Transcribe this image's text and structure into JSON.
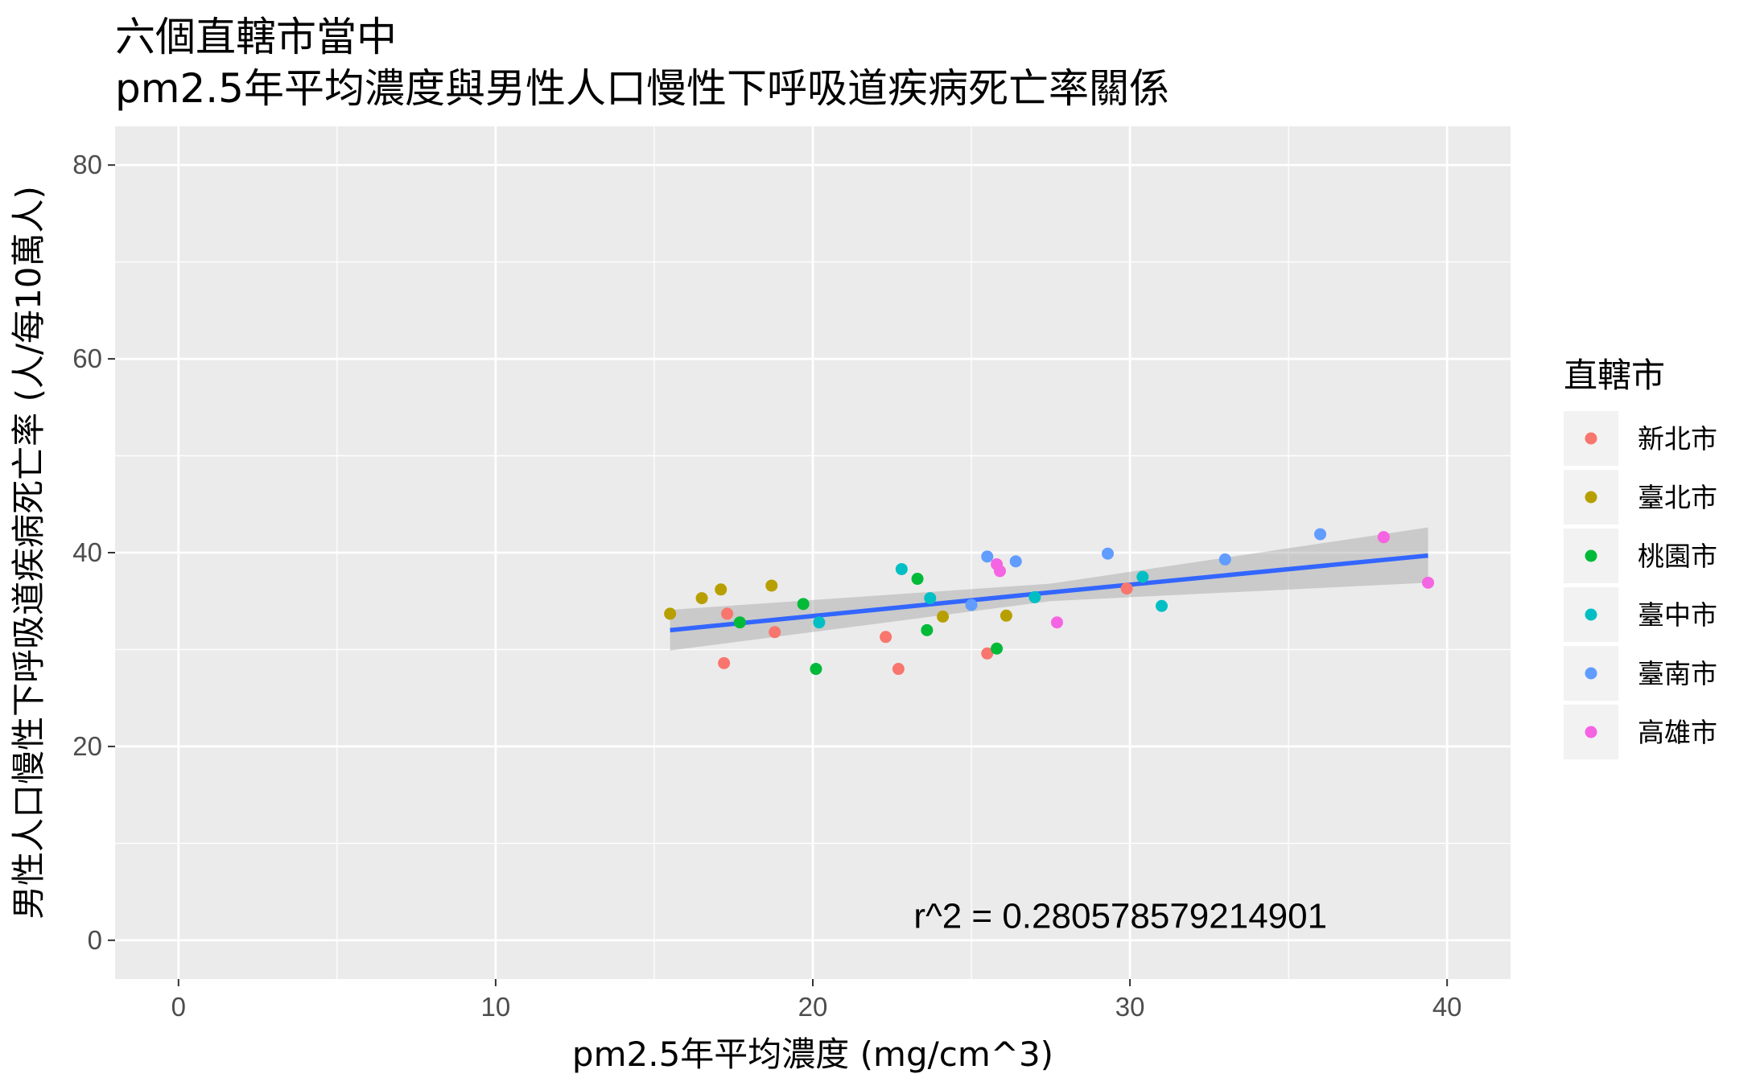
{
  "chart_data": {
    "type": "scatter",
    "title": "六個直轄市當中",
    "subtitle": "pm2.5年平均濃度與男性人口慢性下呼吸道疾病死亡率關係",
    "xlabel": "pm2.5年平均濃度 (mg/cm^3)",
    "ylabel": "男性人口慢性下呼吸道疾病死亡率 (人/每10萬人)",
    "xlim": [
      -2,
      42
    ],
    "ylim": [
      -4,
      84
    ],
    "x_ticks": [
      0,
      10,
      20,
      30,
      40
    ],
    "y_ticks": [
      0,
      20,
      40,
      60,
      80
    ],
    "grid": true,
    "panel_background": "#ebebeb",
    "legend": {
      "title": "直轄市",
      "position": "right"
    },
    "annotation": {
      "text": "r^2 = 0.280578579214901",
      "x": 29.7,
      "y": 2.5
    },
    "trend": {
      "color": "#3366ff",
      "band_color": "#999999",
      "x": [
        15.5,
        27.5,
        39.4
      ],
      "fit": [
        32.0,
        35.9,
        39.7
      ],
      "lower": [
        29.9,
        35.0,
        36.9
      ],
      "upper": [
        34.1,
        36.8,
        42.6
      ]
    },
    "series": [
      {
        "name": "新北市",
        "color": "#f8766d",
        "points": [
          [
            17.3,
            33.7
          ],
          [
            17.2,
            28.6
          ],
          [
            18.8,
            31.8
          ],
          [
            22.3,
            31.3
          ],
          [
            22.7,
            28.0
          ],
          [
            25.5,
            29.6
          ],
          [
            29.9,
            36.3
          ],
          [
            38.0,
            41.6
          ]
        ]
      },
      {
        "name": "臺北市",
        "color": "#b79f00",
        "points": [
          [
            15.5,
            33.7
          ],
          [
            16.5,
            35.3
          ],
          [
            17.1,
            36.2
          ],
          [
            18.7,
            36.6
          ],
          [
            24.1,
            33.4
          ],
          [
            26.1,
            33.5
          ]
        ]
      },
      {
        "name": "桃園市",
        "color": "#00ba38",
        "points": [
          [
            17.7,
            32.8
          ],
          [
            19.7,
            34.7
          ],
          [
            20.1,
            28.0
          ],
          [
            23.3,
            37.3
          ],
          [
            23.6,
            32.0
          ],
          [
            25.8,
            30.1
          ]
        ]
      },
      {
        "name": "臺中市",
        "color": "#00bfc4",
        "points": [
          [
            20.2,
            32.8
          ],
          [
            22.8,
            38.3
          ],
          [
            23.7,
            35.3
          ],
          [
            27.0,
            35.4
          ],
          [
            30.4,
            37.5
          ],
          [
            31.0,
            34.5
          ]
        ]
      },
      {
        "name": "臺南市",
        "color": "#619cff",
        "points": [
          [
            25.0,
            34.6
          ],
          [
            25.5,
            39.6
          ],
          [
            26.4,
            39.1
          ],
          [
            29.3,
            39.9
          ],
          [
            33.0,
            39.3
          ],
          [
            36.0,
            41.9
          ]
        ]
      },
      {
        "name": "高雄市",
        "color": "#f564e3",
        "points": [
          [
            25.8,
            38.8
          ],
          [
            25.9,
            38.1
          ],
          [
            27.7,
            32.8
          ],
          [
            38.0,
            41.6
          ],
          [
            39.4,
            36.9
          ]
        ]
      }
    ]
  }
}
